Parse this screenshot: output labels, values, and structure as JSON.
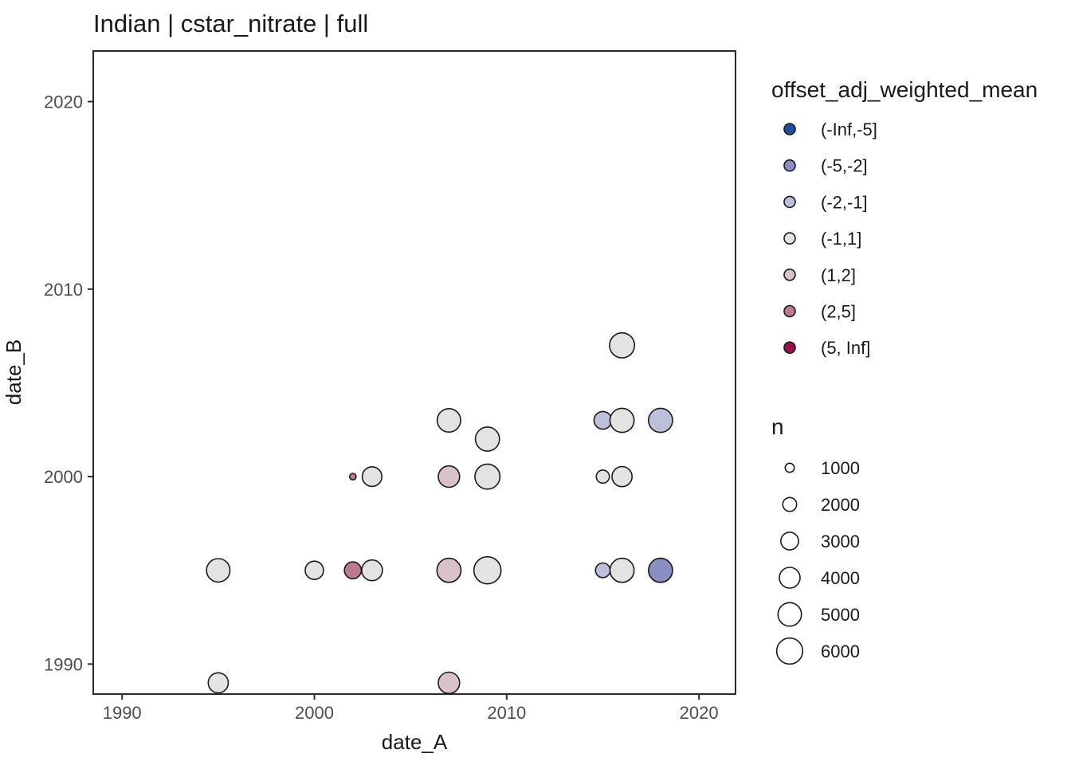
{
  "page": {
    "background": "#ffffff"
  },
  "chart_data": {
    "type": "scatter",
    "title": "Indian | cstar_nitrate | full",
    "xlabel": "date_A",
    "ylabel": "date_B",
    "x_ticks": [
      1990,
      2000,
      2010,
      2020
    ],
    "y_ticks": [
      1990,
      2000,
      2010,
      2020
    ],
    "xlim": [
      1988.5,
      2021.9
    ],
    "ylim": [
      1988.4,
      2022.7
    ],
    "grid": "off",
    "legend_position": "right",
    "color_legend": {
      "title": "offset_adj_weighted_mean",
      "entries": [
        {
          "label": "(-Inf,-5]",
          "color": "#1F4E9C"
        },
        {
          "label": "(-5,-2]",
          "color": "#8890C1"
        },
        {
          "label": "(-2,-1]",
          "color": "#BDC0D9"
        },
        {
          "label": "(-1,1]",
          "color": "#E4E3E1"
        },
        {
          "label": "(1,2]",
          "color": "#D9C1C9"
        },
        {
          "label": "(2,5]",
          "color": "#BC7A8D"
        },
        {
          "label": "(5, Inf]",
          "color": "#96134B"
        }
      ]
    },
    "size_legend": {
      "title": "n",
      "values": [
        1000,
        2000,
        3000,
        4000,
        5000,
        6000
      ]
    },
    "points": [
      {
        "date_A": 1995,
        "date_B": 1989,
        "bin": "(-1,1]",
        "n": 3800
      },
      {
        "date_A": 2007,
        "date_B": 1989,
        "bin": "(1,2]",
        "n": 4200
      },
      {
        "date_A": 1995,
        "date_B": 1995,
        "bin": "(-1,1]",
        "n": 5000
      },
      {
        "date_A": 2000,
        "date_B": 1995,
        "bin": "(-1,1]",
        "n": 3200
      },
      {
        "date_A": 2002,
        "date_B": 1995,
        "bin": "(2,5]",
        "n": 2800
      },
      {
        "date_A": 2003,
        "date_B": 1995,
        "bin": "(-1,1]",
        "n": 4000
      },
      {
        "date_A": 2007,
        "date_B": 1995,
        "bin": "(1,2]",
        "n": 5200
      },
      {
        "date_A": 2009,
        "date_B": 1995,
        "bin": "(-1,1]",
        "n": 6500
      },
      {
        "date_A": 2015,
        "date_B": 1995,
        "bin": "(-2,-1]",
        "n": 2200
      },
      {
        "date_A": 2016,
        "date_B": 1995,
        "bin": "(-1,1]",
        "n": 5200
      },
      {
        "date_A": 2018,
        "date_B": 1995,
        "bin": "(-5,-2]",
        "n": 5200
      },
      {
        "date_A": 2002,
        "date_B": 2000,
        "bin": "(2,5]",
        "n": 600
      },
      {
        "date_A": 2003,
        "date_B": 2000,
        "bin": "(-1,1]",
        "n": 3600
      },
      {
        "date_A": 2007,
        "date_B": 2000,
        "bin": "(1,2]",
        "n": 4200
      },
      {
        "date_A": 2009,
        "date_B": 2000,
        "bin": "(-1,1]",
        "n": 5600
      },
      {
        "date_A": 2015,
        "date_B": 2000,
        "bin": "(-1,1]",
        "n": 1800
      },
      {
        "date_A": 2016,
        "date_B": 2000,
        "bin": "(-1,1]",
        "n": 3800
      },
      {
        "date_A": 2009,
        "date_B": 2002,
        "bin": "(-1,1]",
        "n": 5200
      },
      {
        "date_A": 2007,
        "date_B": 2003,
        "bin": "(-1,1]",
        "n": 5000
      },
      {
        "date_A": 2015,
        "date_B": 2003,
        "bin": "(-2,-1]",
        "n": 3000
      },
      {
        "date_A": 2016,
        "date_B": 2003,
        "bin": "(-1,1]",
        "n": 5200
      },
      {
        "date_A": 2018,
        "date_B": 2003,
        "bin": "(-2,-1]",
        "n": 5200
      },
      {
        "date_A": 2016,
        "date_B": 2007,
        "bin": "(-1,1]",
        "n": 5600
      }
    ],
    "point_outline_color": "#1a1a1a",
    "panel_border_color": "#2b2b2b"
  }
}
